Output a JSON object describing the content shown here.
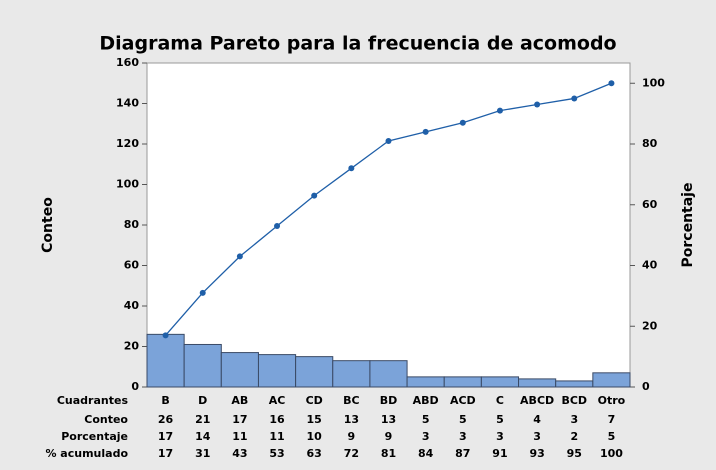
{
  "chart_data": {
    "type": "pareto",
    "title": "Diagrama Pareto para la frecuencia de acomodo",
    "y_label": "Conteo",
    "y2_label": "Porcentaje",
    "category_label": "Cuadrantes",
    "categories": [
      "B",
      "D",
      "AB",
      "AC",
      "CD",
      "BC",
      "BD",
      "ABD",
      "ACD",
      "C",
      "ABCD",
      "BCD",
      "Otro"
    ],
    "series": [
      {
        "name": "Conteo",
        "color": "#7ba3d9",
        "values": [
          26,
          21,
          17,
          16,
          15,
          13,
          13,
          5,
          5,
          5,
          4,
          3,
          7
        ]
      },
      {
        "name": "% acumulado",
        "color": "#1f5fa8",
        "axis": "y2",
        "values": [
          17,
          31,
          43,
          53,
          63,
          72,
          81,
          84,
          87,
          91,
          93,
          95,
          100
        ]
      }
    ],
    "percent_label": "Porcentaje",
    "percent": [
      17,
      14,
      11,
      11,
      10,
      9,
      9,
      3,
      3,
      3,
      3,
      2,
      5
    ],
    "ylim": [
      0,
      160
    ],
    "yticks": [
      0,
      20,
      40,
      60,
      80,
      100,
      120,
      140,
      160
    ],
    "y2lim": [
      0,
      106.67
    ],
    "y2ticks": [
      0,
      20,
      40,
      60,
      80,
      100
    ]
  }
}
